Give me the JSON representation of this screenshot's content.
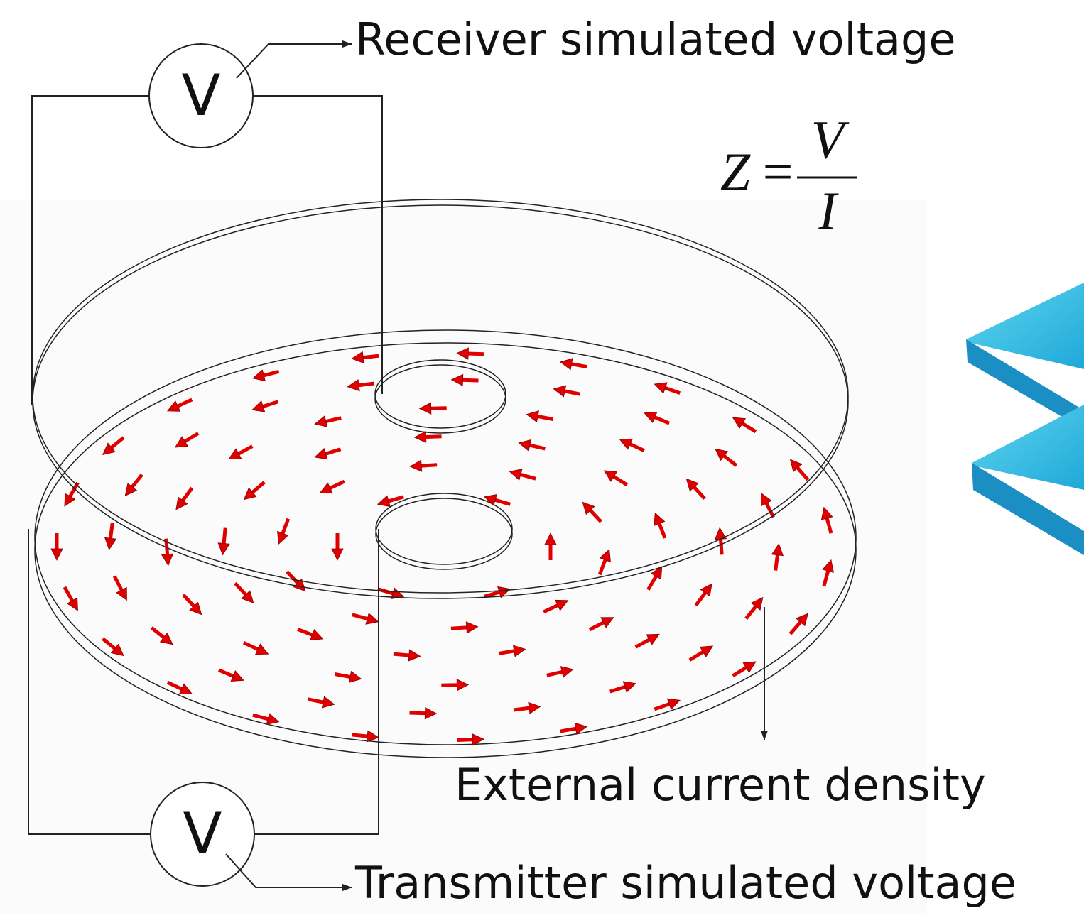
{
  "receiver": {
    "meter": "V",
    "label": "Receiver simulated voltage"
  },
  "transmitter": {
    "meter": "V",
    "label": "Transmitter simulated voltage"
  },
  "formula": {
    "lhs": "Z",
    "equals": "=",
    "numerator": "V",
    "denominator": "I"
  },
  "annotation": "External current density"
}
